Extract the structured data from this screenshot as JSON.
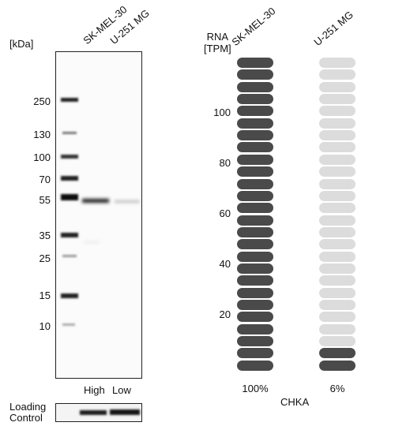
{
  "blot": {
    "unit_label": "[kDa]",
    "lanes": [
      "SK-MEL-30",
      "U-251 MG"
    ],
    "markers": [
      "250",
      "130",
      "100",
      "70",
      "55",
      "35",
      "25",
      "15",
      "10"
    ],
    "lane_levels": [
      "High",
      "Low"
    ],
    "loading_control_label_line1": "Loading",
    "loading_control_label_line2": "Control"
  },
  "rna": {
    "axis_label_line1": "RNA",
    "axis_label_line2": "[TPM]",
    "gene": "CHKA",
    "colors": {
      "filled_dark": "#4a4a4a",
      "filled_light": "#dcdcdc"
    }
  },
  "chart_data": {
    "type": "bar",
    "categories": [
      "SK-MEL-30",
      "U-251 MG"
    ],
    "values": [
      100,
      6
    ],
    "value_labels": [
      "100%",
      "6%"
    ],
    "yticks": [
      "20",
      "40",
      "60",
      "80",
      "100"
    ],
    "ylim": [
      0,
      120
    ]
  }
}
